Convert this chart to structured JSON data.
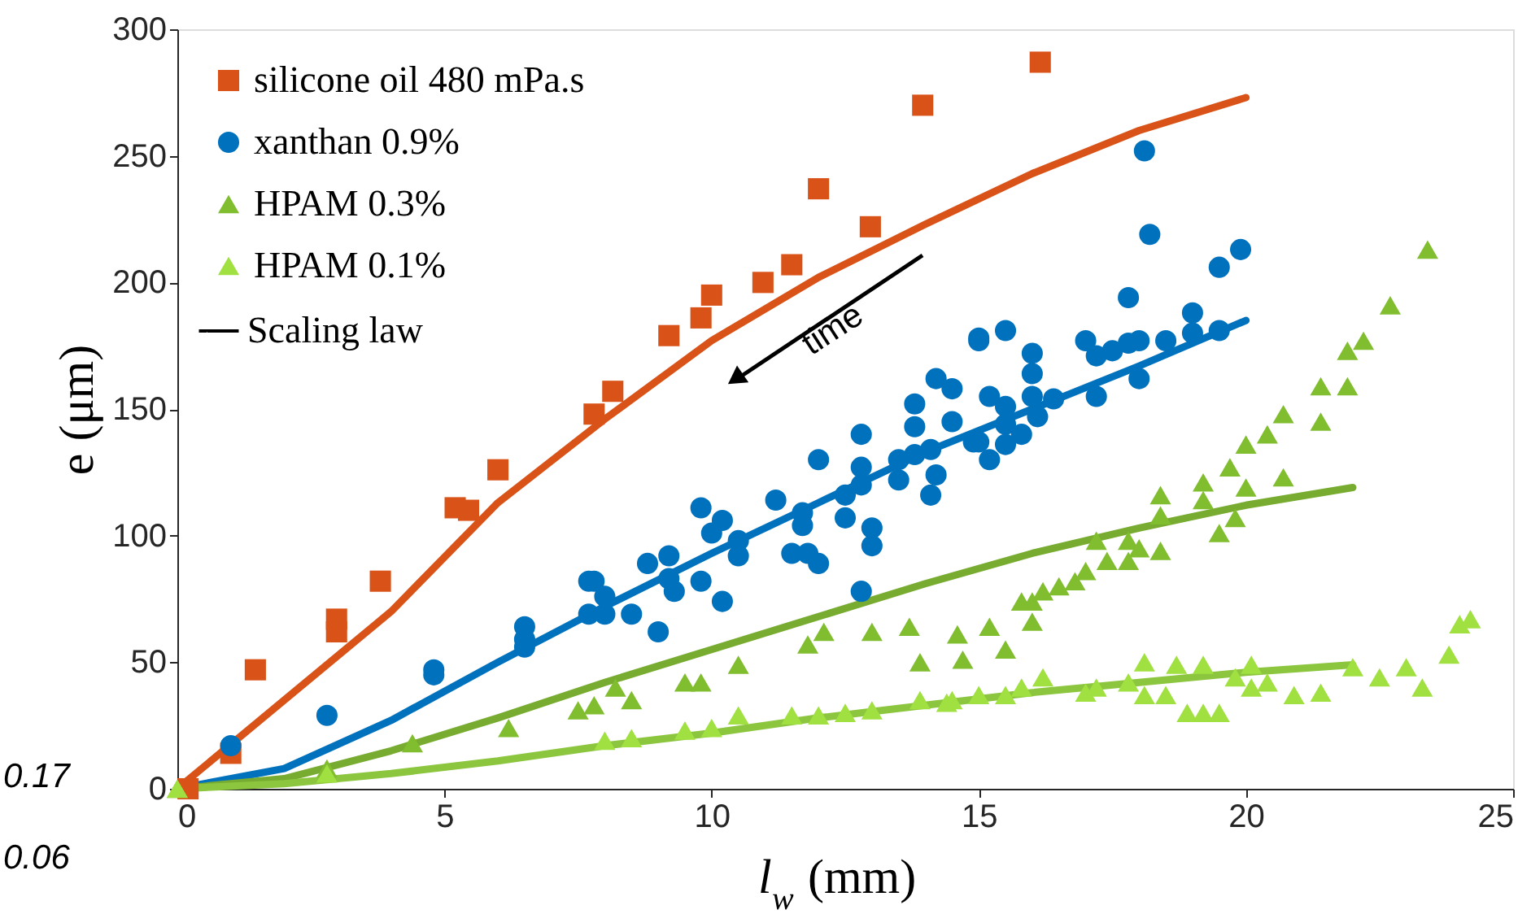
{
  "chart_data": {
    "type": "scatter",
    "xlabel": "l$_{w}$ (mm)",
    "ylabel": "e (μm)",
    "xlim": [
      0,
      25
    ],
    "ylim": [
      0,
      300
    ],
    "xticks": [
      0,
      5,
      10,
      15,
      20,
      25
    ],
    "yticks": [
      0,
      50,
      100,
      150,
      200,
      250,
      300
    ],
    "grid": false,
    "legend": "top left",
    "annotations": [
      "Scaling law",
      "time",
      "0.17",
      "0.06"
    ],
    "series": [
      {
        "name": "silicone oil 480 mPa.s",
        "marker": "square",
        "color": "#d95319",
        "x": [
          0.2,
          1.0,
          1.46,
          2.98,
          2.98,
          3.8,
          5.2,
          5.45,
          6.0,
          7.8,
          8.15,
          9.2,
          9.8,
          10.0,
          10.96,
          11.5,
          12.0,
          12.97,
          13.95,
          16.15
        ],
        "values": [
          0,
          14,
          47,
          67,
          62,
          82,
          111,
          110,
          126,
          148,
          157,
          179,
          186,
          195,
          200,
          207,
          237,
          222,
          270,
          287
        ]
      },
      {
        "name": "xanthan 0.9%",
        "marker": "circle",
        "color": "#0072bd",
        "x": [
          1.0,
          2.8,
          4.8,
          4.8,
          6.5,
          6.5,
          6.5,
          7.7,
          7.7,
          7.8,
          8.0,
          8.0,
          8.5,
          9.0,
          8.8,
          9.2,
          9.2,
          9.3,
          9.8,
          9.8,
          10.2,
          10.0,
          10.2,
          10.5,
          10.5,
          11.2,
          11.5,
          11.8,
          12.0,
          11.7,
          11.7,
          12.0,
          12.5,
          12.5,
          12.8,
          12.8,
          12.8,
          13.0,
          13.0,
          12.8,
          13.5,
          13.5,
          13.8,
          13.8,
          13.8,
          14.2,
          14.5,
          14.5,
          14.1,
          14.2,
          14.1,
          14.9,
          15.0,
          18.1,
          18.2,
          19.9,
          19.5,
          17.8,
          19.0,
          15.0,
          15.5,
          16.0,
          16.0,
          15.2,
          16.0,
          16.4,
          17.2,
          17.0,
          17.2,
          17.5,
          17.8,
          18.0,
          18.5,
          19.0,
          19.5,
          18.0,
          15.5,
          15.5,
          16.1,
          15.8,
          15.5,
          15.0,
          15.2
        ],
        "values": [
          17,
          29,
          47,
          45,
          64,
          59,
          56,
          82,
          69,
          82,
          76,
          69,
          69,
          62,
          89,
          92,
          83,
          78,
          82,
          111,
          106,
          101,
          74,
          98,
          92,
          114,
          93,
          93,
          89,
          109,
          104,
          130,
          116,
          107,
          140,
          127,
          120,
          103,
          96,
          78,
          130,
          122,
          152,
          143,
          132,
          162,
          158,
          145,
          134,
          124,
          116,
          137,
          178,
          252,
          219,
          213,
          206,
          194,
          188,
          177,
          181,
          172,
          164,
          155,
          155,
          154,
          155,
          177,
          171,
          173,
          176,
          177,
          177,
          180,
          181,
          162,
          151,
          144,
          147,
          140,
          136,
          137,
          130
        ]
      },
      {
        "name": "HPAM 0.3%",
        "marker": "triangle",
        "color": "#80bd2f",
        "x": [
          0,
          2.8,
          4.4,
          6.2,
          7.5,
          7.8,
          8.2,
          8.5,
          9.5,
          9.8,
          10.5,
          11.8,
          12.1,
          13.0,
          13.7,
          13.9,
          14.6,
          14.7,
          15.2,
          15.5,
          15.8,
          16.0,
          16.0,
          16.2,
          16.5,
          16.8,
          17.0,
          17.2,
          17.4,
          17.8,
          18.0,
          17.8,
          18.4,
          18.4,
          18.4,
          19.2,
          19.2,
          19.5,
          19.8,
          19.7,
          20.0,
          20.0,
          20.4,
          20.7,
          20.7,
          21.4,
          21.4,
          21.9,
          21.9,
          22.2,
          22.7,
          23.4
        ],
        "values": [
          0,
          8,
          18,
          24,
          31,
          33,
          40,
          35,
          42,
          42,
          49,
          57,
          62,
          62,
          64,
          50,
          61,
          51,
          64,
          55,
          74,
          74,
          66,
          78,
          80,
          82,
          86,
          98,
          90,
          98,
          95,
          90,
          94,
          108,
          116,
          121,
          114,
          101,
          107,
          127,
          119,
          136,
          140,
          123,
          148,
          159,
          145,
          159,
          173,
          177,
          191,
          213
        ]
      },
      {
        "name": "HPAM 0.1%",
        "marker": "triangle",
        "color": "#a0e040",
        "x": [
          0,
          2.8,
          8.0,
          8.5,
          9.5,
          10.0,
          10.5,
          11.5,
          12.0,
          12.5,
          13.0,
          13.9,
          14.5,
          14.4,
          15.0,
          15.5,
          15.8,
          16.2,
          17.0,
          17.2,
          17.8,
          18.1,
          18.1,
          18.7,
          18.5,
          18.9,
          19.2,
          19.2,
          19.5,
          19.8,
          20.1,
          20.1,
          20.4,
          20.9,
          21.4,
          22.0,
          22.5,
          23.0,
          23.3,
          23.8,
          24.0,
          24.2
        ],
        "values": [
          0,
          6,
          19,
          20,
          23,
          24,
          29,
          29,
          29,
          30,
          31,
          35,
          35,
          34,
          37,
          37,
          40,
          44,
          38,
          40,
          42,
          50,
          37,
          49,
          37,
          30,
          49,
          30,
          30,
          44,
          49,
          40,
          42,
          37,
          38,
          48,
          44,
          48,
          40,
          53,
          65,
          67
        ]
      },
      {
        "type": "line",
        "color": "#d95319",
        "x": [
          0,
          2,
          4,
          6,
          8,
          10,
          12,
          14,
          16,
          18,
          20
        ],
        "values": [
          0,
          35,
          70,
          113,
          146,
          177,
          202,
          223,
          243,
          260,
          273
        ]
      },
      {
        "type": "line",
        "color": "#0072bd",
        "x": [
          0,
          2,
          4,
          6,
          8,
          10,
          12,
          14,
          16,
          18,
          20
        ],
        "values": [
          0,
          8,
          27,
          50,
          72,
          93,
          113,
          133,
          150,
          167,
          185
        ]
      },
      {
        "type": "line",
        "color": "#77ac30",
        "x": [
          0,
          2,
          4,
          6,
          8,
          10,
          12,
          14,
          16,
          18,
          20,
          22
        ],
        "values": [
          0,
          4,
          15,
          28,
          42,
          55,
          68,
          81,
          93,
          103,
          112,
          119
        ]
      },
      {
        "type": "line",
        "color": "#8cc63f",
        "x": [
          0,
          2,
          4,
          6,
          8,
          10,
          12,
          14,
          16,
          18,
          20,
          22
        ],
        "values": [
          0,
          2,
          6,
          11,
          17,
          22,
          28,
          33,
          38,
          42,
          46,
          49
        ]
      }
    ]
  }
}
